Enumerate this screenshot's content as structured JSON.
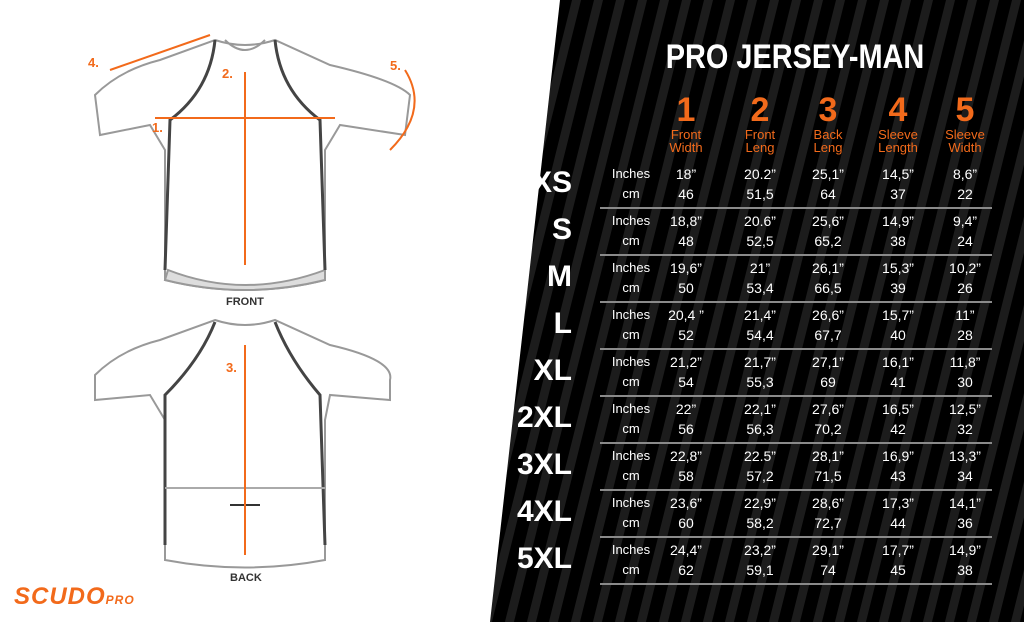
{
  "title": "PRO JERSEY-MAN",
  "colors": {
    "accent": "#f26a1b",
    "background": "#000000"
  },
  "columns": [
    {
      "num": "1",
      "label1": "Front",
      "label2": "Width"
    },
    {
      "num": "2",
      "label1": "Front",
      "label2": "Leng"
    },
    {
      "num": "3",
      "label1": "Back",
      "label2": "Leng"
    },
    {
      "num": "4",
      "label1": "Sleeve",
      "label2": "Length"
    },
    {
      "num": "5",
      "label1": "Sleeve",
      "label2": "Width"
    }
  ],
  "units": {
    "inches": "Inches",
    "cm": "cm"
  },
  "rows": [
    {
      "size": "XS",
      "in": [
        "18”",
        "20.2”",
        "25,1”",
        "14,5”",
        "8,6”"
      ],
      "cm": [
        "46",
        "51,5",
        "64",
        "37",
        "22"
      ]
    },
    {
      "size": "S",
      "in": [
        "18,8”",
        "20.6”",
        "25,6”",
        "14,9”",
        "9,4”"
      ],
      "cm": [
        "48",
        "52,5",
        "65,2",
        "38",
        "24"
      ]
    },
    {
      "size": "M",
      "in": [
        "19,6”",
        "21”",
        "26,1”",
        "15,3”",
        "10,2”"
      ],
      "cm": [
        "50",
        "53,4",
        "66,5",
        "39",
        "26"
      ]
    },
    {
      "size": "L",
      "in": [
        "20,4 ”",
        "21,4”",
        "26,6”",
        "15,7”",
        "11”"
      ],
      "cm": [
        "52",
        "54,4",
        "67,7",
        "40",
        "28"
      ]
    },
    {
      "size": "XL",
      "in": [
        "21,2”",
        "21,7”",
        "27,1”",
        "16,1”",
        "11,8”"
      ],
      "cm": [
        "54",
        "55,3",
        "69",
        "41",
        "30"
      ]
    },
    {
      "size": "2XL",
      "in": [
        "22”",
        "22,1”",
        "27,6”",
        "16,5”",
        "12,5”"
      ],
      "cm": [
        "56",
        "56,3",
        "70,2",
        "42",
        "32"
      ]
    },
    {
      "size": "3XL",
      "in": [
        "22,8”",
        "22.5”",
        "28,1”",
        "16,9”",
        "13,3”"
      ],
      "cm": [
        "58",
        "57,2",
        "71,5",
        "43",
        "34"
      ]
    },
    {
      "size": "4XL",
      "in": [
        "23,6”",
        "22,9”",
        "28,6”",
        "17,3”",
        "14,1”"
      ],
      "cm": [
        "60",
        "58,2",
        "72,7",
        "44",
        "36"
      ]
    },
    {
      "size": "5XL",
      "in": [
        "24,4”",
        "23,2”",
        "29,1”",
        "17,7”",
        "14,9”"
      ],
      "cm": [
        "62",
        "59,1",
        "74",
        "45",
        "38"
      ]
    }
  ],
  "diagram": {
    "front_label": "FRONT",
    "back_label": "BACK",
    "markers": [
      "1.",
      "2.",
      "3.",
      "4.",
      "5."
    ]
  },
  "logo": {
    "brand": "SCUDO",
    "sub": "PRO"
  }
}
